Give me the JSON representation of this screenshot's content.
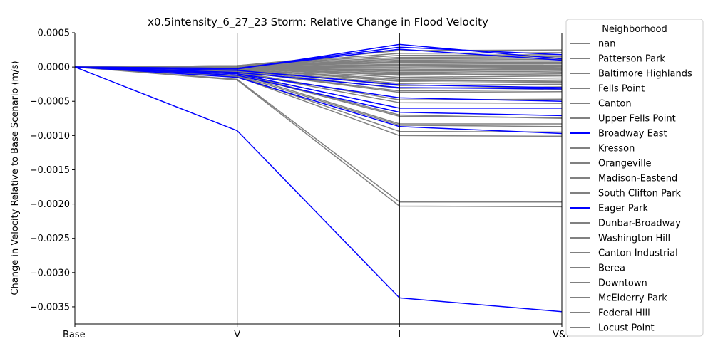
{
  "chart_data": {
    "type": "line",
    "title": "x0.5intensity_6_27_23 Storm: Relative Change in Flood Velocity",
    "xlabel": "",
    "ylabel": "Change in Velocity Relative to Base Scenario (m/s)",
    "categories": [
      "Base",
      "V",
      "I",
      "V&I"
    ],
    "ylim": [
      -0.00375,
      0.0005
    ],
    "yticks": [
      0.0005,
      0.0,
      -0.0005,
      -0.001,
      -0.0015,
      -0.002,
      -0.0025,
      -0.003,
      -0.0035
    ],
    "ytick_labels": [
      "0.0005",
      "0.0000",
      "−0.0005",
      "−0.0010",
      "−0.0015",
      "−0.0020",
      "−0.0025",
      "−0.0030",
      "−0.0035"
    ],
    "grid": false,
    "legend": {
      "title": "Neighborhood",
      "placement": "outside-right",
      "entries": [
        {
          "name": "nan",
          "color": "#808080"
        },
        {
          "name": "Patterson Park",
          "color": "#808080"
        },
        {
          "name": "Baltimore Highlands",
          "color": "#808080"
        },
        {
          "name": "Fells Point",
          "color": "#808080"
        },
        {
          "name": "Canton",
          "color": "#808080"
        },
        {
          "name": "Upper Fells Point",
          "color": "#808080"
        },
        {
          "name": "Broadway East",
          "color": "#0000ff"
        },
        {
          "name": "Kresson",
          "color": "#808080"
        },
        {
          "name": "Orangeville",
          "color": "#808080"
        },
        {
          "name": "Madison-Eastend",
          "color": "#808080"
        },
        {
          "name": "South Clifton Park",
          "color": "#808080"
        },
        {
          "name": "Eager Park",
          "color": "#0000ff"
        },
        {
          "name": "Dunbar-Broadway",
          "color": "#808080"
        },
        {
          "name": "Washington Hill",
          "color": "#808080"
        },
        {
          "name": "Canton Industrial",
          "color": "#808080"
        },
        {
          "name": "Berea",
          "color": "#808080"
        },
        {
          "name": "Downtown",
          "color": "#808080"
        },
        {
          "name": "McElderry Park",
          "color": "#808080"
        },
        {
          "name": "Federal Hill",
          "color": "#808080"
        },
        {
          "name": "Locust Point",
          "color": "#808080"
        }
      ]
    },
    "colors": {
      "highlight": "#0000ff",
      "other": "#808080"
    },
    "series": [
      {
        "color": "#0000ff",
        "values": [
          0,
          -0.00093,
          -0.00337,
          -0.00357
        ]
      },
      {
        "color": "#0000ff",
        "values": [
          0,
          -0.00015,
          -0.00087,
          -0.00097
        ]
      },
      {
        "color": "#0000ff",
        "values": [
          0,
          -0.00012,
          -0.00066,
          -0.00071
        ]
      },
      {
        "color": "#0000ff",
        "values": [
          0,
          -0.0001,
          -0.0006,
          -0.0006
        ]
      },
      {
        "color": "#0000ff",
        "values": [
          0,
          -0.0001,
          -0.00045,
          -0.0005
        ]
      },
      {
        "color": "#0000ff",
        "values": [
          0,
          -8e-05,
          -0.0003,
          -0.00032
        ]
      },
      {
        "color": "#0000ff",
        "values": [
          0,
          -5e-05,
          -0.00026,
          -0.0003
        ]
      },
      {
        "color": "#0000ff",
        "values": [
          0,
          -3e-05,
          0.00033,
          0.00012
        ]
      },
      {
        "color": "#0000ff",
        "values": [
          0,
          -2e-05,
          0.00029,
          0.00018
        ]
      },
      {
        "color": "#0000ff",
        "values": [
          0,
          -2e-05,
          0.00026,
          0.0001
        ]
      },
      {
        "color": "#808080",
        "values": [
          0,
          -0.00019,
          -0.00203,
          -0.00204
        ]
      },
      {
        "color": "#808080",
        "values": [
          0,
          -0.00018,
          -0.00197,
          -0.00197
        ]
      },
      {
        "color": "#808080",
        "values": [
          0,
          -0.00014,
          -0.001,
          -0.00101
        ]
      },
      {
        "color": "#808080",
        "values": [
          0,
          -0.00013,
          -0.00094,
          -0.00095
        ]
      },
      {
        "color": "#808080",
        "values": [
          0,
          -0.00012,
          -0.00085,
          -0.00087
        ]
      },
      {
        "color": "#808080",
        "values": [
          0,
          -0.0001,
          -0.00083,
          -0.00083
        ]
      },
      {
        "color": "#808080",
        "values": [
          0,
          -0.0001,
          -0.00072,
          -0.00074
        ]
      },
      {
        "color": "#808080",
        "values": [
          0,
          -9e-05,
          -0.0007,
          -0.00075
        ]
      },
      {
        "color": "#808080",
        "values": [
          0,
          -8e-05,
          -0.00052,
          -0.00053
        ]
      },
      {
        "color": "#808080",
        "values": [
          0,
          -7e-05,
          -0.00048,
          -0.00047
        ]
      },
      {
        "color": "#808080",
        "values": [
          0,
          -6e-05,
          -0.00037,
          -0.00036
        ]
      },
      {
        "color": "#808080",
        "values": [
          0,
          -6e-05,
          -0.00035,
          -0.00033
        ]
      },
      {
        "color": "#808080",
        "values": [
          0,
          -5e-05,
          -0.00031,
          -0.00029
        ]
      },
      {
        "color": "#808080",
        "values": [
          0,
          -4e-05,
          -0.00027,
          -0.00025
        ]
      },
      {
        "color": "#808080",
        "values": [
          0,
          -4e-05,
          -0.00024,
          -0.00022
        ]
      },
      {
        "color": "#808080",
        "values": [
          0,
          -3e-05,
          -0.00021,
          -0.00019
        ]
      },
      {
        "color": "#808080",
        "values": [
          0,
          -3e-05,
          -0.00018,
          -0.00016
        ]
      },
      {
        "color": "#808080",
        "values": [
          0,
          -2e-05,
          -0.00015,
          -0.00013
        ]
      },
      {
        "color": "#808080",
        "values": [
          0,
          -2e-05,
          -0.00012,
          -0.0001
        ]
      },
      {
        "color": "#808080",
        "values": [
          0,
          -2e-05,
          -0.0001,
          -8e-05
        ]
      },
      {
        "color": "#808080",
        "values": [
          0,
          -1e-05,
          -8e-05,
          -6e-05
        ]
      },
      {
        "color": "#808080",
        "values": [
          0,
          -1e-05,
          -6e-05,
          -4e-05
        ]
      },
      {
        "color": "#808080",
        "values": [
          0,
          -1e-05,
          -4e-05,
          -2e-05
        ]
      },
      {
        "color": "#808080",
        "values": [
          0,
          0.0,
          -2e-05,
          0.0
        ]
      },
      {
        "color": "#808080",
        "values": [
          0,
          0.0,
          0.0,
          1e-05
        ]
      },
      {
        "color": "#808080",
        "values": [
          0,
          0.0,
          2e-05,
          3e-05
        ]
      },
      {
        "color": "#808080",
        "values": [
          0,
          0.0,
          4e-05,
          5e-05
        ]
      },
      {
        "color": "#808080",
        "values": [
          0,
          1e-05,
          6e-05,
          7e-05
        ]
      },
      {
        "color": "#808080",
        "values": [
          0,
          1e-05,
          8e-05,
          9e-05
        ]
      },
      {
        "color": "#808080",
        "values": [
          0,
          1e-05,
          0.0001,
          0.00011
        ]
      },
      {
        "color": "#808080",
        "values": [
          0,
          1e-05,
          0.00012,
          0.00013
        ]
      },
      {
        "color": "#808080",
        "values": [
          0,
          2e-05,
          0.00014,
          0.00015
        ]
      },
      {
        "color": "#808080",
        "values": [
          0,
          2e-05,
          0.00017,
          0.00018
        ]
      },
      {
        "color": "#808080",
        "values": [
          0,
          2e-05,
          0.0002,
          0.00021
        ]
      },
      {
        "color": "#808080",
        "values": [
          0,
          2e-05,
          0.00024,
          0.00025
        ]
      },
      {
        "color": "#808080",
        "values": [
          0,
          -1e-05,
          -5e-05,
          -3e-05
        ]
      },
      {
        "color": "#808080",
        "values": [
          0,
          -2e-05,
          -0.00011,
          -0.00012
        ]
      },
      {
        "color": "#808080",
        "values": [
          0,
          -3e-05,
          -0.0002,
          -0.00021
        ]
      },
      {
        "color": "#808080",
        "values": [
          0,
          0.0,
          3e-05,
          2e-05
        ]
      },
      {
        "color": "#808080",
        "values": [
          0,
          1e-05,
          7e-05,
          6e-05
        ]
      }
    ]
  }
}
